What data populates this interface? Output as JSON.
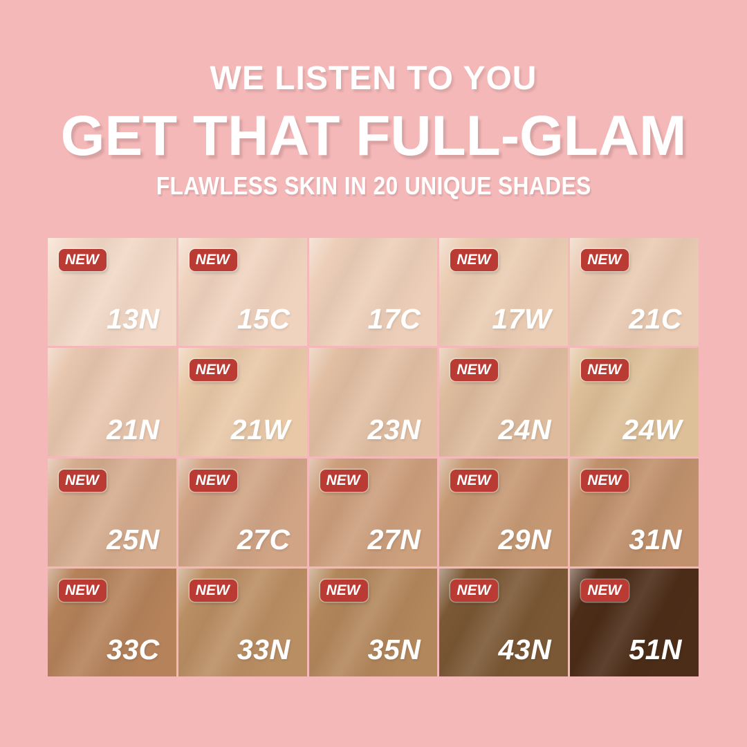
{
  "theme": {
    "background": "#F5B8B8",
    "badge_color": "#B93B33",
    "badge_text_color": "#FFFFFF",
    "headline_color": "#FFFFFF",
    "shade_label_color": "#FFFFFF"
  },
  "header": {
    "eyebrow": "WE LISTEN TO YOU",
    "title": "GET THAT FULL-GLAM",
    "subtitle": "FLAWLESS SKIN IN 20 UNIQUE SHADES"
  },
  "badge": {
    "label": "NEW"
  },
  "grid": {
    "columns": 5,
    "rows": 4,
    "shade_count": 20
  },
  "shades": [
    {
      "code": "13N",
      "color": "#F2D8C6",
      "new": true
    },
    {
      "code": "15C",
      "color": "#F0D3BF",
      "new": true
    },
    {
      "code": "17C",
      "color": "#EDCFB9",
      "new": false
    },
    {
      "code": "17W",
      "color": "#EBCDB3",
      "new": true
    },
    {
      "code": "21C",
      "color": "#EACBB3",
      "new": true
    },
    {
      "code": "21N",
      "color": "#E8C6AE",
      "new": false
    },
    {
      "code": "21W",
      "color": "#E8C8A7",
      "new": true
    },
    {
      "code": "23N",
      "color": "#E2BFA3",
      "new": false
    },
    {
      "code": "24N",
      "color": "#DEBB9D",
      "new": true
    },
    {
      "code": "24W",
      "color": "#DDBF98",
      "new": true
    },
    {
      "code": "25N",
      "color": "#D5AC8E",
      "new": true
    },
    {
      "code": "27C",
      "color": "#D0A485",
      "new": true
    },
    {
      "code": "27N",
      "color": "#CC9F7D",
      "new": true
    },
    {
      "code": "29N",
      "color": "#C69974",
      "new": true
    },
    {
      "code": "31N",
      "color": "#C0916C",
      "new": true
    },
    {
      "code": "33C",
      "color": "#B5825A",
      "new": true
    },
    {
      "code": "33N",
      "color": "#BA8E63",
      "new": true
    },
    {
      "code": "35N",
      "color": "#B3875C",
      "new": true
    },
    {
      "code": "43N",
      "color": "#7B5835",
      "new": true
    },
    {
      "code": "51N",
      "color": "#4C2D18",
      "new": true
    }
  ]
}
